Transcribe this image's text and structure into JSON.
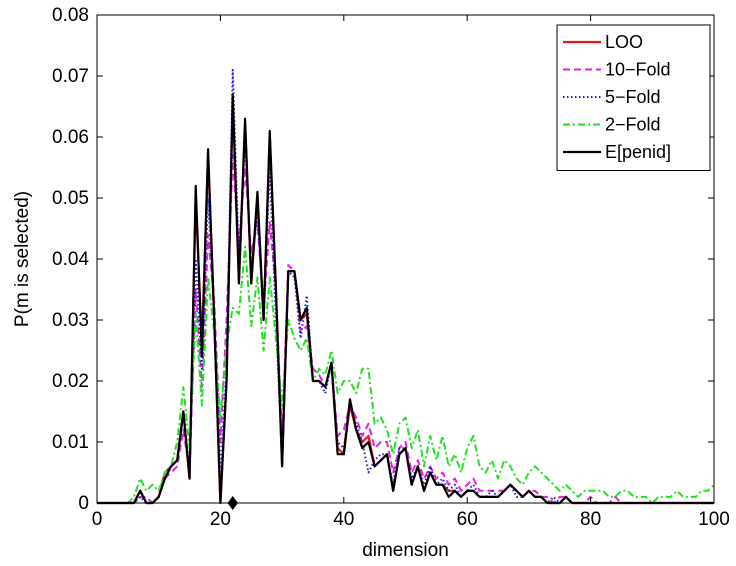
{
  "chart_data": {
    "type": "line",
    "title": "",
    "xlabel": "dimension",
    "ylabel": "P(m is selected)",
    "xlim": [
      0,
      100
    ],
    "ylim": [
      0,
      0.08
    ],
    "xticks": [
      "0",
      "20",
      "40",
      "60",
      "80",
      "100"
    ],
    "yticks": [
      "0",
      "0.01",
      "0.02",
      "0.03",
      "0.04",
      "0.05",
      "0.06",
      "0.07",
      "0.08"
    ],
    "legend_position": "top-right",
    "grid": false,
    "marker": {
      "shape": "diamond",
      "x": 22,
      "y": 0
    },
    "series": [
      {
        "name": "LOO",
        "color": "#e8151b",
        "dash": "solid",
        "x": [
          0,
          1,
          2,
          3,
          4,
          5,
          6,
          7,
          8,
          9,
          10,
          11,
          12,
          13,
          14,
          15,
          16,
          17,
          18,
          19,
          20,
          21,
          22,
          23,
          24,
          25,
          26,
          27,
          28,
          29,
          30,
          31,
          32,
          33,
          34,
          35,
          36,
          37,
          38,
          39,
          40,
          41,
          42,
          43,
          44,
          45,
          46,
          47,
          48,
          49,
          50,
          51,
          52,
          53,
          54,
          55,
          56,
          57,
          58,
          59,
          60,
          61,
          62,
          63,
          64,
          65,
          66,
          67,
          68,
          69,
          70,
          71,
          72,
          73,
          74,
          75,
          76,
          77,
          78,
          79,
          80,
          81,
          82,
          83,
          84,
          85,
          86,
          87,
          88,
          89,
          90,
          91,
          92,
          93,
          94,
          95,
          96,
          97,
          98,
          99,
          100
        ],
        "y": [
          0,
          0,
          0,
          0,
          0,
          0,
          0,
          0.002,
          0,
          0,
          0.001,
          0.005,
          0.006,
          0.007,
          0.015,
          0.004,
          0.05,
          0.026,
          0.057,
          0.03,
          0,
          0.02,
          0.066,
          0.036,
          0.062,
          0.036,
          0.05,
          0.03,
          0.06,
          0.035,
          0.006,
          0.038,
          0.038,
          0.03,
          0.031,
          0.02,
          0.02,
          0.019,
          0.023,
          0.009,
          0.008,
          0.016,
          0.012,
          0.01,
          0.011,
          0.006,
          0.007,
          0.008,
          0.002,
          0.008,
          0.009,
          0.003,
          0.006,
          0.002,
          0.005,
          0.003,
          0.003,
          0.002,
          0.002,
          0.001,
          0.002,
          0.002,
          0.001,
          0.001,
          0.001,
          0.001,
          0.002,
          0.003,
          0.002,
          0.001,
          0.002,
          0.001,
          0.001,
          0,
          0,
          0,
          0.001,
          0,
          0,
          0,
          0,
          0,
          0,
          0,
          0,
          0,
          0,
          0,
          0,
          0,
          0,
          0,
          0,
          0,
          0,
          0,
          0,
          0,
          0,
          0,
          0
        ]
      },
      {
        "name": "10−Fold",
        "color": "#e41fe4",
        "dash": "dashed",
        "x": [
          0,
          1,
          2,
          3,
          4,
          5,
          6,
          7,
          8,
          9,
          10,
          11,
          12,
          13,
          14,
          15,
          16,
          17,
          18,
          19,
          20,
          21,
          22,
          23,
          24,
          25,
          26,
          27,
          28,
          29,
          30,
          31,
          32,
          33,
          34,
          35,
          36,
          37,
          38,
          39,
          40,
          41,
          42,
          43,
          44,
          45,
          46,
          47,
          48,
          49,
          50,
          51,
          52,
          53,
          54,
          55,
          56,
          57,
          58,
          59,
          60,
          61,
          62,
          63,
          64,
          65,
          66,
          67,
          68,
          69,
          70,
          71,
          72,
          73,
          74,
          75,
          76,
          77,
          78,
          79,
          80,
          81,
          82,
          83,
          84,
          85,
          86,
          87,
          88,
          89,
          90,
          91,
          92,
          93,
          94,
          95,
          96,
          97,
          98,
          99,
          100
        ],
        "y": [
          0,
          0,
          0,
          0,
          0,
          0,
          0,
          0.001,
          0.001,
          0,
          0.001,
          0.004,
          0.005,
          0.006,
          0.012,
          0.005,
          0.035,
          0.019,
          0.044,
          0.033,
          0.01,
          0.03,
          0.057,
          0.042,
          0.055,
          0.041,
          0.046,
          0.032,
          0.046,
          0.035,
          0.01,
          0.039,
          0.038,
          0.028,
          0.029,
          0.022,
          0.021,
          0.019,
          0.023,
          0.011,
          0.012,
          0.016,
          0.014,
          0.011,
          0.013,
          0.009,
          0.01,
          0.01,
          0.005,
          0.009,
          0.01,
          0.005,
          0.007,
          0.004,
          0.006,
          0.004,
          0.005,
          0.003,
          0.004,
          0.002,
          0.003,
          0.004,
          0.002,
          0.002,
          0.002,
          0.002,
          0.002,
          0.003,
          0.002,
          0.001,
          0.002,
          0.002,
          0.001,
          0.001,
          0,
          0.001,
          0.001,
          0,
          0,
          0,
          0.001,
          0,
          0,
          0,
          0.001,
          0,
          0,
          0,
          0,
          0,
          0,
          0,
          0,
          0,
          0,
          0,
          0,
          0,
          0,
          0,
          0
        ]
      },
      {
        "name": "5−Fold",
        "color": "#1f1fd6",
        "dash": "dotted",
        "x": [
          0,
          1,
          2,
          3,
          4,
          5,
          6,
          7,
          8,
          9,
          10,
          11,
          12,
          13,
          14,
          15,
          16,
          17,
          18,
          19,
          20,
          21,
          22,
          23,
          24,
          25,
          26,
          27,
          28,
          29,
          30,
          31,
          32,
          33,
          34,
          35,
          36,
          37,
          38,
          39,
          40,
          41,
          42,
          43,
          44,
          45,
          46,
          47,
          48,
          49,
          50,
          51,
          52,
          53,
          54,
          55,
          56,
          57,
          58,
          59,
          60,
          61,
          62,
          63,
          64,
          65,
          66,
          67,
          68,
          69,
          70,
          71,
          72,
          73,
          74,
          75,
          76,
          77,
          78,
          79,
          80,
          81,
          82,
          83,
          84,
          85,
          86,
          87,
          88,
          89,
          90,
          91,
          92,
          93,
          94,
          95,
          96,
          97,
          98,
          99,
          100
        ],
        "y": [
          0,
          0,
          0,
          0,
          0,
          0,
          0,
          0.001,
          0,
          0,
          0.001,
          0.004,
          0.006,
          0.007,
          0.015,
          0.005,
          0.04,
          0.022,
          0.05,
          0.031,
          0.005,
          0.022,
          0.071,
          0.04,
          0.06,
          0.038,
          0.048,
          0.03,
          0.055,
          0.03,
          0.007,
          0.038,
          0.037,
          0.027,
          0.034,
          0.02,
          0.02,
          0.018,
          0.023,
          0.01,
          0.009,
          0.016,
          0.013,
          0.01,
          0.005,
          0.007,
          0.008,
          0.008,
          0.003,
          0.009,
          0.009,
          0.004,
          0.006,
          0.003,
          0.006,
          0.003,
          0.004,
          0.002,
          0.003,
          0.001,
          0.002,
          0.003,
          0.001,
          0.001,
          0.002,
          0.001,
          0.002,
          0.003,
          0.001,
          0.001,
          0.002,
          0.001,
          0.001,
          0,
          0.001,
          0,
          0.001,
          0,
          0,
          0,
          0,
          0,
          0,
          0,
          0,
          0,
          0,
          0,
          0,
          0,
          0,
          0,
          0,
          0,
          0,
          0,
          0,
          0,
          0,
          0,
          0
        ]
      },
      {
        "name": "2−Fold",
        "color": "#1fe21f",
        "dash": "dashdot",
        "x": [
          0,
          1,
          2,
          3,
          4,
          5,
          6,
          7,
          8,
          9,
          10,
          11,
          12,
          13,
          14,
          15,
          16,
          17,
          18,
          19,
          20,
          21,
          22,
          23,
          24,
          25,
          26,
          27,
          28,
          29,
          30,
          31,
          32,
          33,
          34,
          35,
          36,
          37,
          38,
          39,
          40,
          41,
          42,
          43,
          44,
          45,
          46,
          47,
          48,
          49,
          50,
          51,
          52,
          53,
          54,
          55,
          56,
          57,
          58,
          59,
          60,
          61,
          62,
          63,
          64,
          65,
          66,
          67,
          68,
          69,
          70,
          71,
          72,
          73,
          74,
          75,
          76,
          77,
          78,
          79,
          80,
          81,
          82,
          83,
          84,
          85,
          86,
          87,
          88,
          89,
          90,
          91,
          92,
          93,
          94,
          95,
          96,
          97,
          98,
          99,
          100
        ],
        "y": [
          0,
          0,
          0,
          0,
          0,
          0,
          0.001,
          0.004,
          0.002,
          0.003,
          0.002,
          0.005,
          0.006,
          0.01,
          0.019,
          0.009,
          0.031,
          0.016,
          0.037,
          0.028,
          0.014,
          0.026,
          0.032,
          0.031,
          0.042,
          0.029,
          0.037,
          0.025,
          0.037,
          0.027,
          0.016,
          0.03,
          0.027,
          0.025,
          0.027,
          0.02,
          0.022,
          0.021,
          0.025,
          0.018,
          0.02,
          0.02,
          0.018,
          0.022,
          0.022,
          0.013,
          0.014,
          0.012,
          0.008,
          0.013,
          0.014,
          0.009,
          0.012,
          0.006,
          0.011,
          0.007,
          0.011,
          0.006,
          0.008,
          0.005,
          0.009,
          0.011,
          0.006,
          0.005,
          0.007,
          0.004,
          0.007,
          0.006,
          0.004,
          0.003,
          0.005,
          0.006,
          0.005,
          0.004,
          0.003,
          0.002,
          0.003,
          0.002,
          0.001,
          0.002,
          0.002,
          0.002,
          0.002,
          0.001,
          0.001,
          0.002,
          0.002,
          0.001,
          0.001,
          0.001,
          0,
          0.001,
          0.001,
          0.001,
          0.002,
          0.001,
          0.001,
          0.001,
          0.002,
          0.002,
          0.003
        ]
      },
      {
        "name": "E[penid]",
        "color": "#000000",
        "dash": "solid",
        "x": [
          0,
          1,
          2,
          3,
          4,
          5,
          6,
          7,
          8,
          9,
          10,
          11,
          12,
          13,
          14,
          15,
          16,
          17,
          18,
          19,
          20,
          21,
          22,
          23,
          24,
          25,
          26,
          27,
          28,
          29,
          30,
          31,
          32,
          33,
          34,
          35,
          36,
          37,
          38,
          39,
          40,
          41,
          42,
          43,
          44,
          45,
          46,
          47,
          48,
          49,
          50,
          51,
          52,
          53,
          54,
          55,
          56,
          57,
          58,
          59,
          60,
          61,
          62,
          63,
          64,
          65,
          66,
          67,
          68,
          69,
          70,
          71,
          72,
          73,
          74,
          75,
          76,
          77,
          78,
          79,
          80,
          81,
          82,
          83,
          84,
          85,
          86,
          87,
          88,
          89,
          90,
          91,
          92,
          93,
          94,
          95,
          96,
          97,
          98,
          99,
          100
        ],
        "y": [
          0,
          0,
          0,
          0,
          0,
          0,
          0,
          0.002,
          0,
          0,
          0.001,
          0.004,
          0.006,
          0.007,
          0.015,
          0.004,
          0.052,
          0.024,
          0.058,
          0.03,
          0,
          0.02,
          0.067,
          0.036,
          0.063,
          0.036,
          0.051,
          0.03,
          0.061,
          0.035,
          0.006,
          0.038,
          0.038,
          0.03,
          0.032,
          0.02,
          0.02,
          0.019,
          0.023,
          0.008,
          0.008,
          0.017,
          0.012,
          0.009,
          0.01,
          0.006,
          0.007,
          0.008,
          0.002,
          0.008,
          0.009,
          0.003,
          0.006,
          0.002,
          0.005,
          0.003,
          0.003,
          0.001,
          0.002,
          0.001,
          0.002,
          0.002,
          0.001,
          0.001,
          0.001,
          0.001,
          0.002,
          0.003,
          0.002,
          0.001,
          0.002,
          0.001,
          0.001,
          0,
          0,
          0,
          0.001,
          0,
          0,
          0,
          0,
          0,
          0,
          0,
          0,
          0,
          0,
          0,
          0,
          0,
          0,
          0,
          0,
          0,
          0,
          0,
          0,
          0,
          0,
          0,
          0
        ]
      }
    ]
  }
}
